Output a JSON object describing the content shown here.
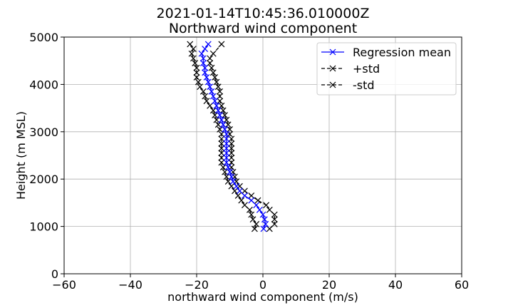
{
  "chart_data": {
    "type": "line",
    "title": "2021-01-14T10:45:36.010000Z",
    "subtitle": "Northward wind component",
    "xlabel": "northward wind component (m/s)",
    "ylabel": "Height (m MSL)",
    "xlim": [
      -60,
      60
    ],
    "ylim": [
      0,
      5000
    ],
    "xticks": [
      -60,
      -40,
      -20,
      0,
      20,
      40,
      60
    ],
    "yticks": [
      0,
      1000,
      2000,
      3000,
      4000,
      5000
    ],
    "xtick_labels": [
      "−60",
      "−40",
      "−20",
      "0",
      "20",
      "40",
      "60"
    ],
    "ytick_labels": [
      "0",
      "1000",
      "2000",
      "3000",
      "4000",
      "5000"
    ],
    "grid": true,
    "legend_position": "top-right",
    "series": [
      {
        "name": "Regression mean",
        "color": "#0000ff",
        "linestyle": "solid",
        "marker": "x",
        "points": [
          [
            0.2,
            950
          ],
          [
            0.8,
            1050
          ],
          [
            0.5,
            1150
          ],
          [
            0.0,
            1250
          ],
          [
            -1.0,
            1350
          ],
          [
            -2.0,
            1450
          ],
          [
            -3.5,
            1550
          ],
          [
            -5.5,
            1650
          ],
          [
            -7.0,
            1750
          ],
          [
            -8.0,
            1850
          ],
          [
            -9.0,
            1950
          ],
          [
            -9.5,
            2050
          ],
          [
            -10.0,
            2150
          ],
          [
            -10.5,
            2250
          ],
          [
            -11.0,
            2350
          ],
          [
            -11.0,
            2450
          ],
          [
            -11.0,
            2550
          ],
          [
            -11.0,
            2650
          ],
          [
            -11.0,
            2750
          ],
          [
            -11.0,
            2850
          ],
          [
            -11.0,
            2950
          ],
          [
            -11.5,
            3050
          ],
          [
            -12.0,
            3150
          ],
          [
            -12.5,
            3250
          ],
          [
            -13.0,
            3350
          ],
          [
            -13.5,
            3450
          ],
          [
            -14.0,
            3550
          ],
          [
            -14.5,
            3650
          ],
          [
            -15.0,
            3750
          ],
          [
            -15.5,
            3850
          ],
          [
            -16.0,
            3950
          ],
          [
            -16.5,
            4050
          ],
          [
            -17.0,
            4150
          ],
          [
            -17.5,
            4250
          ],
          [
            -17.5,
            4350
          ],
          [
            -18.0,
            4450
          ],
          [
            -18.0,
            4550
          ],
          [
            -18.5,
            4650
          ],
          [
            -17.5,
            4750
          ],
          [
            -16.5,
            4850
          ]
        ]
      },
      {
        "name": "+std",
        "color": "#000000",
        "linestyle": "dashed",
        "marker": "x",
        "points": [
          [
            2.0,
            950
          ],
          [
            3.5,
            1050
          ],
          [
            3.5,
            1150
          ],
          [
            3.5,
            1250
          ],
          [
            2.0,
            1350
          ],
          [
            1.0,
            1450
          ],
          [
            -1.5,
            1550
          ],
          [
            -3.5,
            1650
          ],
          [
            -5.5,
            1750
          ],
          [
            -7.0,
            1850
          ],
          [
            -8.0,
            1950
          ],
          [
            -8.5,
            2050
          ],
          [
            -9.0,
            2150
          ],
          [
            -9.5,
            2250
          ],
          [
            -9.5,
            2350
          ],
          [
            -9.5,
            2450
          ],
          [
            -9.5,
            2550
          ],
          [
            -9.5,
            2650
          ],
          [
            -9.5,
            2750
          ],
          [
            -9.5,
            2850
          ],
          [
            -10.0,
            2950
          ],
          [
            -10.0,
            3050
          ],
          [
            -10.5,
            3150
          ],
          [
            -11.0,
            3250
          ],
          [
            -11.5,
            3350
          ],
          [
            -12.0,
            3450
          ],
          [
            -12.5,
            3550
          ],
          [
            -13.0,
            3650
          ],
          [
            -13.0,
            3750
          ],
          [
            -13.0,
            3850
          ],
          [
            -13.5,
            3950
          ],
          [
            -14.0,
            4050
          ],
          [
            -14.5,
            4150
          ],
          [
            -15.0,
            4250
          ],
          [
            -15.5,
            4350
          ],
          [
            -16.0,
            4450
          ],
          [
            -16.0,
            4550
          ],
          [
            -15.0,
            4650
          ],
          [
            -12.5,
            4850
          ]
        ]
      },
      {
        "name": "-std",
        "color": "#000000",
        "linestyle": "dashed",
        "marker": "x",
        "points": [
          [
            -2.5,
            950
          ],
          [
            -2.0,
            1050
          ],
          [
            -3.0,
            1150
          ],
          [
            -3.5,
            1250
          ],
          [
            -4.0,
            1350
          ],
          [
            -5.5,
            1450
          ],
          [
            -6.5,
            1550
          ],
          [
            -7.5,
            1650
          ],
          [
            -8.5,
            1750
          ],
          [
            -9.5,
            1850
          ],
          [
            -10.5,
            1950
          ],
          [
            -11.0,
            2050
          ],
          [
            -11.5,
            2150
          ],
          [
            -12.0,
            2250
          ],
          [
            -12.5,
            2350
          ],
          [
            -12.5,
            2450
          ],
          [
            -12.5,
            2550
          ],
          [
            -12.5,
            2650
          ],
          [
            -12.5,
            2750
          ],
          [
            -12.5,
            2850
          ],
          [
            -12.5,
            2950
          ],
          [
            -13.0,
            3050
          ],
          [
            -13.5,
            3150
          ],
          [
            -14.0,
            3250
          ],
          [
            -14.5,
            3350
          ],
          [
            -15.0,
            3450
          ],
          [
            -16.0,
            3550
          ],
          [
            -17.0,
            3650
          ],
          [
            -17.5,
            3750
          ],
          [
            -18.0,
            3850
          ],
          [
            -19.0,
            3950
          ],
          [
            -19.5,
            4050
          ],
          [
            -20.0,
            4150
          ],
          [
            -20.0,
            4250
          ],
          [
            -20.0,
            4350
          ],
          [
            -20.5,
            4450
          ],
          [
            -21.0,
            4550
          ],
          [
            -21.5,
            4650
          ],
          [
            -21.0,
            4750
          ],
          [
            -22.0,
            4850
          ]
        ]
      }
    ]
  }
}
